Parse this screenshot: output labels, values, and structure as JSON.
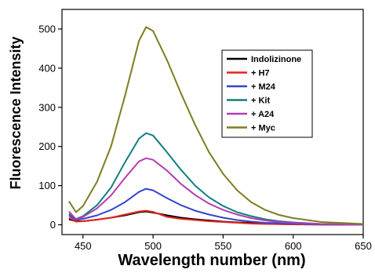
{
  "chart_data": {
    "type": "line",
    "title": "",
    "xlabel": "Wavelength number (nm)",
    "ylabel": "Fluorescence Intensity",
    "xlim": [
      435,
      650
    ],
    "ylim": [
      -25,
      550
    ],
    "xticks": [
      450,
      500,
      550,
      600,
      650
    ],
    "yticks": [
      0,
      100,
      200,
      300,
      400,
      500
    ],
    "grid": false,
    "legend_position": "top-right",
    "x": [
      440,
      445,
      450,
      460,
      470,
      480,
      490,
      495,
      500,
      510,
      520,
      530,
      540,
      550,
      560,
      570,
      580,
      590,
      600,
      620,
      650
    ],
    "series": [
      {
        "name": "Indolizinone",
        "color": "#000000",
        "values": [
          14,
          9,
          9,
          13,
          18,
          24,
          32,
          34,
          31,
          24,
          18,
          14,
          11,
          8,
          6,
          5,
          3,
          2,
          1,
          0.5,
          0
        ]
      },
      {
        "name": "+ H7",
        "color": "#e8241f",
        "values": [
          18,
          8,
          9,
          13,
          18,
          26,
          34,
          36,
          33,
          20,
          15,
          12,
          9,
          7,
          5,
          3,
          2,
          1.5,
          1,
          0.5,
          0
        ]
      },
      {
        "name": "+ M24",
        "color": "#3446c6",
        "values": [
          24,
          12,
          15,
          24,
          38,
          58,
          84,
          92,
          88,
          68,
          50,
          36,
          26,
          18,
          12,
          8,
          5,
          4,
          3,
          1,
          0
        ]
      },
      {
        "name": "+ Kit",
        "color": "#127f7f",
        "values": [
          28,
          15,
          22,
          50,
          95,
          160,
          220,
          234,
          228,
          185,
          140,
          100,
          70,
          48,
          32,
          22,
          14,
          9,
          6,
          2,
          0
        ]
      },
      {
        "name": "+ A24",
        "color": "#b33db3",
        "values": [
          34,
          14,
          20,
          42,
          75,
          120,
          162,
          170,
          166,
          138,
          104,
          76,
          54,
          38,
          26,
          17,
          11,
          7,
          5,
          2,
          0
        ]
      },
      {
        "name": "+ Myc",
        "color": "#7d7d22",
        "values": [
          60,
          32,
          48,
          110,
          200,
          330,
          470,
          505,
          495,
          420,
          335,
          255,
          185,
          130,
          88,
          58,
          38,
          25,
          17,
          7,
          2
        ]
      }
    ]
  }
}
